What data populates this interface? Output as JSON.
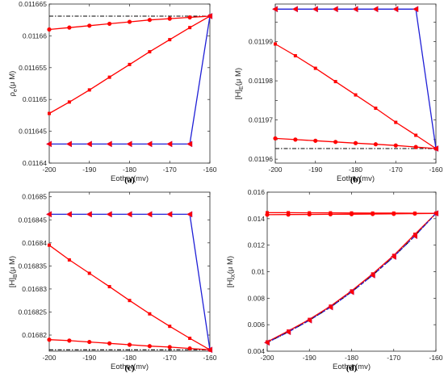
{
  "figure": {
    "colors": {
      "red": "#ff0000",
      "blue": "#1f1fd6",
      "black": "#000000",
      "magenta": "#c0146e"
    }
  },
  "chart_data": [
    {
      "type": "line",
      "caption": "(a)",
      "xlabel": "Eother(mv)",
      "ylabel_base": "ρ",
      "ylabel_sub": "e",
      "ylabel_unit": "(μ M)",
      "xlim": [
        -200,
        -160
      ],
      "ylim": [
        0.01164,
        0.011665
      ],
      "xticks": [
        -200,
        -190,
        -180,
        -170,
        -160
      ],
      "xtick_labels": [
        "-200",
        "-190",
        "-180",
        "-170",
        "-160"
      ],
      "yticks": [
        0.01164,
        0.011645,
        0.01165,
        0.011655,
        0.01166,
        0.011665
      ],
      "ytick_labels": [
        "0.01164",
        "0.011645",
        "0.01165",
        "0.011655",
        "0.01166",
        "0.011665"
      ],
      "x": [
        -200,
        -195,
        -190,
        -185,
        -180,
        -175,
        -170,
        -165,
        -160
      ],
      "series": [
        {
          "style": "dash-dot",
          "color": "#000000",
          "marker": "none",
          "values": [
            0.0116631,
            0.0116631,
            0.0116631,
            0.0116631,
            0.0116631,
            0.0116631,
            0.0116631,
            0.0116631,
            0.0116631
          ]
        },
        {
          "style": "solid",
          "color": "#ff0000",
          "marker": "circle",
          "values": [
            0.011661,
            0.0116613,
            0.0116616,
            0.0116619,
            0.0116622,
            0.0116625,
            0.0116627,
            0.0116629,
            0.0116631
          ]
        },
        {
          "style": "solid",
          "color": "#ff0000",
          "marker": "square",
          "values": [
            0.0116478,
            0.0116496,
            0.0116515,
            0.0116535,
            0.0116555,
            0.0116575,
            0.0116594,
            0.0116613,
            0.0116631
          ]
        },
        {
          "style": "solid",
          "color": "#1f1fd6",
          "marker": "triangle-left",
          "values": [
            0.011643,
            0.011643,
            0.011643,
            0.011643,
            0.011643,
            0.011643,
            0.011643,
            0.011643,
            0.0116631
          ]
        }
      ]
    },
    {
      "type": "line",
      "caption": "(b)",
      "xlabel": "Eother(mv)",
      "ylabel_base": "[H]",
      "ylabel_sub": "E",
      "ylabel_unit": "(μ M)",
      "xlim": [
        -200,
        -160
      ],
      "ylim": [
        0.011959,
        0.0119996
      ],
      "xticks": [
        -200,
        -190,
        -180,
        -170,
        -160
      ],
      "xtick_labels": [
        "-200",
        "-190",
        "-180",
        "-170",
        "-160"
      ],
      "yticks": [
        0.01196,
        0.011965,
        0.01197,
        0.011975,
        0.01198,
        0.011985,
        0.01199,
        0.011995
      ],
      "ytick_labels": [
        "0.01196",
        "",
        "0.01197",
        "",
        "0.01198",
        "",
        "0.01199",
        ""
      ],
      "x": [
        -200,
        -195,
        -190,
        -185,
        -180,
        -175,
        -170,
        -165,
        -160
      ],
      "series": [
        {
          "style": "dash-dot",
          "color": "#000000",
          "marker": "none",
          "values": [
            0.0119627,
            0.0119627,
            0.0119627,
            0.0119627,
            0.0119627,
            0.0119627,
            0.0119627,
            0.0119627,
            0.0119627
          ]
        },
        {
          "style": "solid",
          "color": "#ff0000",
          "marker": "circle",
          "values": [
            0.0119653,
            0.011965,
            0.0119647,
            0.0119644,
            0.0119641,
            0.0119638,
            0.0119635,
            0.0119631,
            0.0119627
          ]
        },
        {
          "style": "solid",
          "color": "#ff0000",
          "marker": "square",
          "values": [
            0.0119894,
            0.0119864,
            0.0119832,
            0.0119798,
            0.0119764,
            0.011973,
            0.0119694,
            0.0119661,
            0.0119627
          ]
        },
        {
          "style": "solid",
          "color": "#1f1fd6",
          "marker": "triangle-left",
          "values": [
            0.0119983,
            0.0119983,
            0.0119983,
            0.0119983,
            0.0119983,
            0.0119983,
            0.0119983,
            0.0119983,
            0.0119627
          ]
        }
      ]
    },
    {
      "type": "line",
      "caption": "(c)",
      "xlabel": "Eother(mv)",
      "ylabel_base": "[H]",
      "ylabel_sub": "B",
      "ylabel_unit": "(μ M)",
      "xlim": [
        -200,
        -160
      ],
      "ylim": [
        0.0168165,
        0.016851
      ],
      "xticks": [
        -200,
        -190,
        -180,
        -170,
        -160
      ],
      "xtick_labels": [
        "-200",
        "-190",
        "-180",
        "-170",
        "-160"
      ],
      "yticks": [
        0.01682,
        0.016825,
        0.01683,
        0.016835,
        0.01684,
        0.016845,
        0.01685
      ],
      "ytick_labels": [
        "0.01682",
        "0.016825",
        "0.01683",
        "0.016835",
        "0.01684",
        "0.016845",
        "0.01685"
      ],
      "x": [
        -200,
        -195,
        -190,
        -185,
        -180,
        -175,
        -170,
        -165,
        -160
      ],
      "series": [
        {
          "style": "dash-dot",
          "color": "#000000",
          "marker": "none",
          "values": [
            0.0168168,
            0.0168168,
            0.0168168,
            0.0168168,
            0.0168168,
            0.0168168,
            0.0168168,
            0.0168168,
            0.0168168
          ]
        },
        {
          "style": "solid",
          "color": "#ff0000",
          "marker": "circle",
          "values": [
            0.016819,
            0.0168188,
            0.0168185,
            0.0168182,
            0.0168179,
            0.0168176,
            0.0168174,
            0.0168171,
            0.0168168
          ]
        },
        {
          "style": "solid",
          "color": "#ff0000",
          "marker": "square",
          "values": [
            0.0168395,
            0.0168363,
            0.0168334,
            0.0168305,
            0.0168275,
            0.0168246,
            0.0168219,
            0.0168193,
            0.0168168
          ]
        },
        {
          "style": "solid",
          "color": "#1f1fd6",
          "marker": "triangle-left",
          "values": [
            0.0168462,
            0.0168462,
            0.0168462,
            0.0168462,
            0.0168462,
            0.0168462,
            0.0168462,
            0.0168462,
            0.0168168
          ]
        }
      ]
    },
    {
      "type": "line",
      "caption": "(d)",
      "xlabel": "Eother(mv)",
      "ylabel_base": "[H]",
      "ylabel_sub": "X",
      "ylabel_unit": "(μ M)",
      "xlim": [
        -200,
        -160
      ],
      "ylim": [
        0.004,
        0.016
      ],
      "xticks": [
        -200,
        -190,
        -180,
        -170,
        -160
      ],
      "xtick_labels": [
        "-200",
        "-190",
        "-180",
        "-170",
        "-160"
      ],
      "yticks": [
        0.004,
        0.006,
        0.008,
        0.01,
        0.012,
        0.014,
        0.016
      ],
      "ytick_labels": [
        "0.004",
        "0.006",
        "0.008",
        "0.01",
        "0.012",
        "0.014",
        "0.016"
      ],
      "x": [
        -200,
        -195,
        -190,
        -185,
        -180,
        -175,
        -170,
        -165,
        -160
      ],
      "series": [
        {
          "style": "dash-dot",
          "color": "#000000",
          "marker": "none",
          "values": [
            0.00465,
            0.00545,
            0.00633,
            0.00732,
            0.00847,
            0.00973,
            0.01113,
            0.0127,
            0.0144
          ]
        },
        {
          "style": "solid",
          "color": "#ff0000",
          "marker": "circle",
          "values": [
            0.0143,
            0.01431,
            0.01432,
            0.01433,
            0.01434,
            0.01435,
            0.01436,
            0.01438,
            0.0144
          ]
        },
        {
          "style": "solid",
          "color": "#ff0000",
          "marker": "square",
          "values": [
            0.01445,
            0.01445,
            0.01444,
            0.01444,
            0.01443,
            0.01442,
            0.01442,
            0.01441,
            0.0144
          ]
        },
        {
          "style": "solid",
          "color": "#ff0000",
          "marker": "square",
          "values": [
            0.0047,
            0.00552,
            0.0064,
            0.0074,
            0.00855,
            0.00983,
            0.01123,
            0.01282,
            0.0144
          ]
        },
        {
          "style": "dashed",
          "color": "#1f1fd6",
          "marker": "triangle-left",
          "values": [
            0.00465,
            0.00545,
            0.00633,
            0.00732,
            0.00847,
            0.00973,
            0.01113,
            0.0127,
            0.0144
          ]
        }
      ]
    }
  ]
}
